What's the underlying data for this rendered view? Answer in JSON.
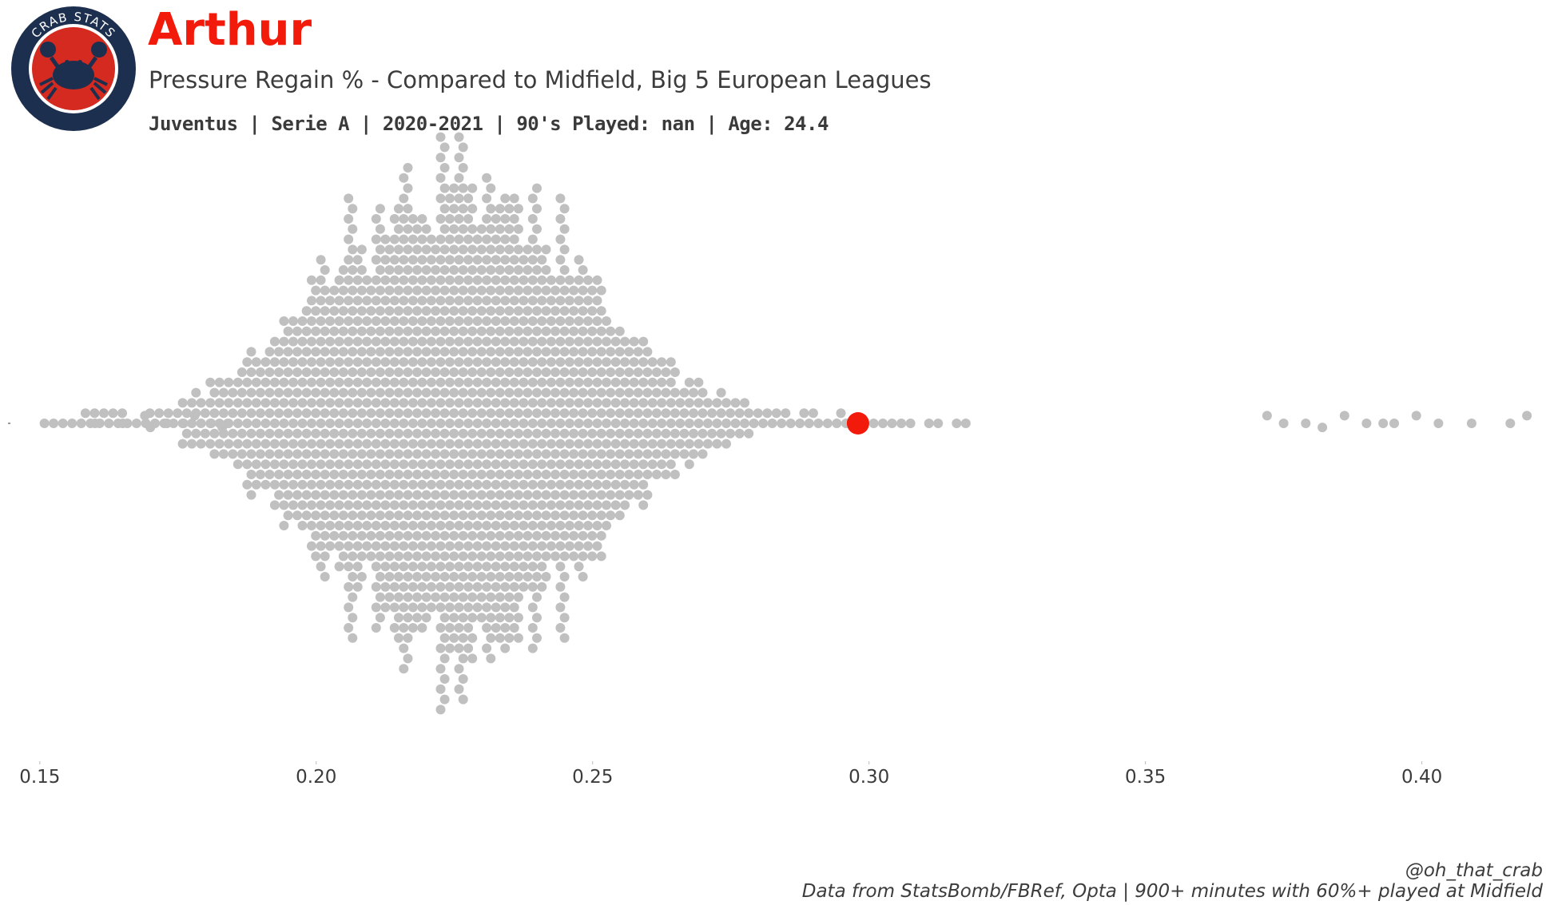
{
  "header": {
    "player_name": "Arthur",
    "subtitle": "Pressure Regain % - Compared to Midfield, Big 5 European Leagues",
    "meta_line": "Juventus  | Serie A | 2020-2021 | 90's Played: nan | Age: 24.4"
  },
  "logo": {
    "text": "CRAB STATS",
    "icon": "crab-icon",
    "ring_color": "#1d2f4f",
    "disc_color": "#d42a1f"
  },
  "footer": {
    "handle": "@oh_that_crab",
    "source": "Data from StatsBomb/FBRef, Opta | 900+ minutes with 60%+ played at Midfield"
  },
  "colors": {
    "highlight": "#f21a0a",
    "population": "#c0c0c0",
    "tick_text": "#3c3c3c"
  },
  "chart_data": {
    "type": "scatter",
    "style": "beeswarm",
    "xlim": [
      0.148,
      0.42
    ],
    "xticks": [
      "0.15",
      "0.20",
      "0.25",
      "0.30",
      "0.35",
      "0.40"
    ],
    "highlight": {
      "name": "Arthur",
      "x": 0.298
    },
    "distribution": {
      "bins_start": 0.15,
      "bin_width": 0.005,
      "counts": [
        3,
        5,
        6,
        4,
        6,
        16,
        24,
        38,
        52,
        70,
        88,
        106,
        122,
        132,
        140,
        142,
        136,
        124,
        106,
        88,
        68,
        50,
        36,
        24,
        16,
        10,
        6,
        5,
        4,
        3,
        3,
        2,
        2,
        2
      ]
    },
    "isolated_points": [
      0.16,
      0.165,
      0.169,
      0.17,
      0.173,
      0.176,
      0.178,
      0.181,
      0.183,
      0.184,
      0.372,
      0.375,
      0.379,
      0.382,
      0.386,
      0.39,
      0.393,
      0.395,
      0.399,
      0.403,
      0.409,
      0.416,
      0.419
    ]
  }
}
